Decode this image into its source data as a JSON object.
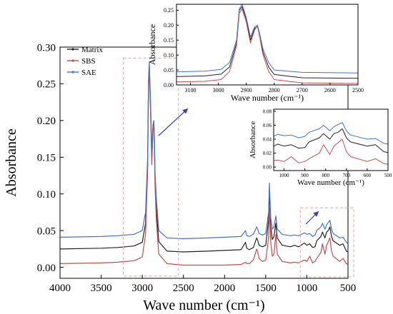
{
  "colors": {
    "Matrix": "#222222",
    "SBS": "#c0504d",
    "SAE": "#4472c4",
    "zoom_box": "#e8a0a0",
    "arrow": "#2f3fc0"
  },
  "chart_data": [
    {
      "id": "main",
      "type": "line",
      "xlabel": "Wave number (cm⁻¹)",
      "ylabel": "Absorbance",
      "xlim": [
        4000,
        500
      ],
      "ylim": [
        -0.015,
        0.3
      ],
      "x_ticks": [
        4000,
        3500,
        3000,
        2500,
        2000,
        1500,
        1000,
        500
      ],
      "y_ticks": [
        0.0,
        0.05,
        0.1,
        0.15,
        0.2,
        0.25,
        0.3
      ],
      "y_tick_labels": [
        "0.00",
        "0.05",
        "0.10",
        "0.15",
        "0.20",
        "0.25",
        "0.30"
      ],
      "legend": {
        "placement": "top-left",
        "entries": [
          "Matrix",
          "SBS",
          "SAE"
        ]
      },
      "series": [
        {
          "name": "Matrix",
          "x": [
            4000,
            3500,
            3300,
            3100,
            3000,
            2960,
            2935,
            2925,
            2915,
            2900,
            2885,
            2870,
            2860,
            2853,
            2845,
            2830,
            2800,
            2700,
            2500,
            2200,
            2000,
            1800,
            1745,
            1730,
            1700,
            1650,
            1610,
            1600,
            1580,
            1540,
            1500,
            1465,
            1455,
            1440,
            1420,
            1400,
            1377,
            1360,
            1300,
            1200,
            1150,
            1100,
            1030,
            1000,
            965,
            930,
            900,
            880,
            830,
            810,
            780,
            760,
            740,
            720,
            700,
            680,
            600,
            560,
            520,
            500
          ],
          "y": [
            0.025,
            0.026,
            0.027,
            0.029,
            0.034,
            0.06,
            0.14,
            0.25,
            0.275,
            0.22,
            0.15,
            0.19,
            0.195,
            0.17,
            0.12,
            0.08,
            0.035,
            0.022,
            0.021,
            0.022,
            0.023,
            0.024,
            0.034,
            0.026,
            0.024,
            0.027,
            0.04,
            0.038,
            0.03,
            0.028,
            0.03,
            0.065,
            0.105,
            0.055,
            0.038,
            0.042,
            0.06,
            0.04,
            0.03,
            0.028,
            0.03,
            0.028,
            0.033,
            0.03,
            0.032,
            0.027,
            0.028,
            0.036,
            0.042,
            0.048,
            0.04,
            0.048,
            0.05,
            0.055,
            0.042,
            0.036,
            0.03,
            0.032,
            0.022,
            0.021
          ]
        },
        {
          "name": "SBS",
          "x": [
            4000,
            3500,
            3300,
            3100,
            3000,
            2960,
            2935,
            2925,
            2915,
            2900,
            2885,
            2870,
            2860,
            2853,
            2845,
            2830,
            2800,
            2700,
            2500,
            2200,
            2000,
            1800,
            1745,
            1730,
            1700,
            1650,
            1610,
            1600,
            1580,
            1540,
            1500,
            1465,
            1455,
            1440,
            1420,
            1400,
            1377,
            1360,
            1300,
            1200,
            1150,
            1100,
            1030,
            1000,
            965,
            930,
            900,
            880,
            830,
            810,
            780,
            760,
            740,
            720,
            700,
            680,
            600,
            560,
            520,
            500
          ],
          "y": [
            0.005,
            0.006,
            0.007,
            0.009,
            0.014,
            0.045,
            0.13,
            0.24,
            0.272,
            0.21,
            0.14,
            0.185,
            0.198,
            0.165,
            0.11,
            0.065,
            0.018,
            0.005,
            0.003,
            0.003,
            0.003,
            0.004,
            0.007,
            0.005,
            0.005,
            0.01,
            0.025,
            0.022,
            0.012,
            0.008,
            0.01,
            0.04,
            0.085,
            0.035,
            0.015,
            0.018,
            0.045,
            0.018,
            0.008,
            0.006,
            0.007,
            0.006,
            0.01,
            0.008,
            0.015,
            0.006,
            0.008,
            0.012,
            0.02,
            0.032,
            0.018,
            0.03,
            0.035,
            0.04,
            0.022,
            0.015,
            0.008,
            0.012,
            0.005,
            0.004
          ]
        },
        {
          "name": "SAE",
          "x": [
            4000,
            3500,
            3300,
            3100,
            3000,
            2960,
            2935,
            2925,
            2915,
            2900,
            2885,
            2870,
            2860,
            2853,
            2845,
            2830,
            2800,
            2700,
            2500,
            2200,
            2000,
            1800,
            1745,
            1730,
            1700,
            1650,
            1610,
            1600,
            1580,
            1540,
            1500,
            1465,
            1455,
            1440,
            1420,
            1400,
            1377,
            1360,
            1300,
            1200,
            1150,
            1100,
            1030,
            1000,
            965,
            930,
            900,
            880,
            830,
            810,
            780,
            760,
            740,
            720,
            700,
            680,
            600,
            560,
            520,
            500
          ],
          "y": [
            0.041,
            0.042,
            0.043,
            0.045,
            0.05,
            0.075,
            0.15,
            0.255,
            0.28,
            0.225,
            0.16,
            0.195,
            0.2,
            0.175,
            0.13,
            0.095,
            0.05,
            0.04,
            0.039,
            0.04,
            0.041,
            0.042,
            0.05,
            0.043,
            0.042,
            0.045,
            0.055,
            0.053,
            0.046,
            0.044,
            0.046,
            0.075,
            0.115,
            0.068,
            0.052,
            0.055,
            0.07,
            0.052,
            0.045,
            0.043,
            0.044,
            0.043,
            0.047,
            0.045,
            0.046,
            0.042,
            0.044,
            0.05,
            0.055,
            0.06,
            0.052,
            0.058,
            0.061,
            0.064,
            0.052,
            0.046,
            0.04,
            0.041,
            0.034,
            0.033
          ]
        }
      ]
    },
    {
      "id": "inset1",
      "type": "line",
      "xlabel": "Wave number (cm⁻¹)",
      "ylabel": "Absorbance",
      "xlim": [
        3150,
        2500
      ],
      "ylim": [
        0.0,
        0.27
      ],
      "x_ticks": [
        3100,
        3000,
        2900,
        2800,
        2700,
        2600,
        2500
      ],
      "y_ticks": [
        0.0,
        0.05,
        0.1,
        0.15,
        0.2,
        0.25
      ],
      "y_tick_labels": [
        "0.00",
        "0.05",
        "0.10",
        "0.15",
        "0.20",
        "0.25"
      ],
      "series": [
        {
          "name": "Matrix",
          "x": [
            3150,
            3050,
            2990,
            2960,
            2935,
            2925,
            2915,
            2900,
            2885,
            2870,
            2860,
            2853,
            2840,
            2820,
            2800,
            2700,
            2500
          ],
          "y": [
            0.028,
            0.03,
            0.036,
            0.06,
            0.14,
            0.25,
            0.262,
            0.22,
            0.15,
            0.19,
            0.195,
            0.17,
            0.11,
            0.06,
            0.035,
            0.024,
            0.022
          ]
        },
        {
          "name": "SBS",
          "x": [
            3150,
            3050,
            2990,
            2960,
            2935,
            2925,
            2915,
            2900,
            2885,
            2870,
            2860,
            2853,
            2840,
            2820,
            2800,
            2700,
            2500
          ],
          "y": [
            0.01,
            0.012,
            0.018,
            0.045,
            0.13,
            0.24,
            0.255,
            0.21,
            0.14,
            0.185,
            0.198,
            0.165,
            0.1,
            0.045,
            0.018,
            0.007,
            0.005
          ]
        },
        {
          "name": "SAE",
          "x": [
            3150,
            3050,
            2990,
            2960,
            2935,
            2925,
            2915,
            2900,
            2885,
            2870,
            2860,
            2853,
            2840,
            2820,
            2800,
            2700,
            2500
          ],
          "y": [
            0.044,
            0.046,
            0.052,
            0.075,
            0.15,
            0.255,
            0.27,
            0.225,
            0.16,
            0.195,
            0.2,
            0.175,
            0.12,
            0.075,
            0.05,
            0.042,
            0.04
          ]
        }
      ]
    },
    {
      "id": "inset2",
      "type": "line",
      "xlabel": "Wave number (cm⁻¹)",
      "ylabel": "Absorbance",
      "xlim": [
        1050,
        500
      ],
      "ylim": [
        -0.005,
        0.083
      ],
      "x_ticks": [
        1000,
        900,
        800,
        700,
        600,
        500
      ],
      "y_ticks": [
        0.0,
        0.02,
        0.04,
        0.06,
        0.08
      ],
      "y_tick_labels": [
        "0.00",
        "0.02",
        "0.04",
        "0.06",
        "0.08"
      ],
      "series": [
        {
          "name": "Matrix",
          "x": [
            1050,
            1030,
            1000,
            965,
            930,
            900,
            880,
            830,
            810,
            780,
            760,
            740,
            720,
            700,
            680,
            600,
            560,
            520,
            500
          ],
          "y": [
            0.03,
            0.033,
            0.03,
            0.032,
            0.027,
            0.028,
            0.036,
            0.042,
            0.048,
            0.04,
            0.048,
            0.05,
            0.055,
            0.042,
            0.036,
            0.03,
            0.032,
            0.022,
            0.021
          ]
        },
        {
          "name": "SBS",
          "x": [
            1050,
            1030,
            1000,
            965,
            930,
            900,
            880,
            830,
            810,
            780,
            760,
            740,
            720,
            700,
            680,
            600,
            560,
            520,
            500
          ],
          "y": [
            0.009,
            0.01,
            0.008,
            0.015,
            0.006,
            0.008,
            0.012,
            0.02,
            0.032,
            0.018,
            0.03,
            0.035,
            0.04,
            0.022,
            0.015,
            0.008,
            0.012,
            0.005,
            0.004
          ]
        },
        {
          "name": "SAE",
          "x": [
            1050,
            1030,
            1000,
            965,
            930,
            900,
            880,
            830,
            810,
            780,
            760,
            740,
            720,
            700,
            680,
            600,
            560,
            520,
            500
          ],
          "y": [
            0.044,
            0.047,
            0.045,
            0.046,
            0.042,
            0.044,
            0.05,
            0.055,
            0.06,
            0.052,
            0.058,
            0.061,
            0.064,
            0.052,
            0.046,
            0.04,
            0.041,
            0.034,
            0.033
          ]
        }
      ]
    }
  ]
}
